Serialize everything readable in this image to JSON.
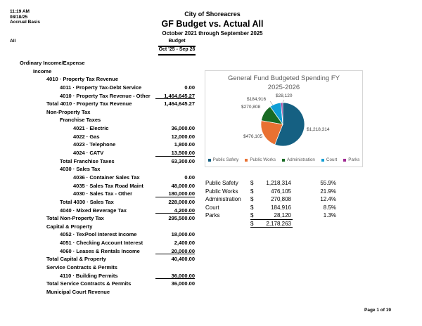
{
  "meta": {
    "time": "11:19 AM",
    "date": "08/18/25",
    "basis": "Accrual Basis",
    "filter": "All"
  },
  "header": {
    "company": "City of Shoreacres",
    "title": "GF Budget vs. Actual All",
    "period": "October 2021 through September 2025"
  },
  "columns": {
    "group": "Budget",
    "period": "Oct '25 - Sep 26"
  },
  "report": {
    "rows": [
      {
        "label": "Ordinary Income/Expense",
        "level": 1,
        "amount": null,
        "underline": false
      },
      {
        "label": "Income",
        "level": 2,
        "amount": null,
        "underline": false
      },
      {
        "label": "4010 · Property Tax Revenue",
        "level": 3,
        "amount": null,
        "underline": false
      },
      {
        "label": "4011 · Property Tax-Debt Service",
        "level": 4,
        "amount": "0.00",
        "underline": false
      },
      {
        "label": "4010 · Property Tax Revenue - Other",
        "level": 4,
        "amount": "1,464,645.27",
        "underline": true
      },
      {
        "label": "Total 4010 · Property Tax Revenue",
        "level": 3,
        "amount": "1,464,645.27",
        "underline": false
      },
      {
        "label": "Non-Property Tax",
        "level": 3,
        "amount": null,
        "underline": false
      },
      {
        "label": "Franchise Taxes",
        "level": 4,
        "amount": null,
        "underline": false
      },
      {
        "label": "4021 · Electric",
        "level": 5,
        "amount": "36,000.00",
        "underline": false
      },
      {
        "label": "4022 · Gas",
        "level": 5,
        "amount": "12,000.00",
        "underline": false
      },
      {
        "label": "4023 · Telephone",
        "level": 5,
        "amount": "1,800.00",
        "underline": false
      },
      {
        "label": "4024 · CATV",
        "level": 5,
        "amount": "13,500.00",
        "underline": true
      },
      {
        "label": "Total Franchise Taxes",
        "level": 4,
        "amount": "63,300.00",
        "underline": false
      },
      {
        "label": "4030 · Sales Tax",
        "level": 4,
        "amount": null,
        "underline": false
      },
      {
        "label": "4036 · Container Sales Tax",
        "level": 5,
        "amount": "0.00",
        "underline": false
      },
      {
        "label": "4035 · Sales Tax Road Maint",
        "level": 5,
        "amount": "48,000.00",
        "underline": false
      },
      {
        "label": "4030 · Sales Tax - Other",
        "level": 5,
        "amount": "180,000.00",
        "underline": true
      },
      {
        "label": "Total 4030 · Sales Tax",
        "level": 4,
        "amount": "228,000.00",
        "underline": false
      },
      {
        "label": "4040 · Mixed Beverage Tax",
        "level": 4,
        "amount": "4,200.00",
        "underline": true
      },
      {
        "label": "Total Non-Property Tax",
        "level": 3,
        "amount": "295,500.00",
        "underline": false
      },
      {
        "label": "Capital & Property",
        "level": 3,
        "amount": null,
        "underline": false
      },
      {
        "label": "4052 · TexPool Interest Income",
        "level": 4,
        "amount": "18,000.00",
        "underline": false
      },
      {
        "label": "4051 · Checking Account Interest",
        "level": 4,
        "amount": "2,400.00",
        "underline": false
      },
      {
        "label": "4060 · Leases & Rentals Income",
        "level": 4,
        "amount": "20,000.00",
        "underline": true
      },
      {
        "label": "Total Capital & Property",
        "level": 3,
        "amount": "40,400.00",
        "underline": false
      },
      {
        "label": "Service Contracts & Permits",
        "level": 3,
        "amount": null,
        "underline": false
      },
      {
        "label": "4110 · Building Permits",
        "level": 4,
        "amount": "36,000.00",
        "underline": true
      },
      {
        "label": "Total Service Contracts & Permits",
        "level": 3,
        "amount": "36,000.00",
        "underline": false
      },
      {
        "label": "Municipal Court Revenue",
        "level": 3,
        "amount": null,
        "underline": false
      }
    ]
  },
  "chart_data": {
    "type": "pie",
    "title": "General Fund Budgeted Spending FY 2025-2026",
    "title_line1": "General Fund Budgeted Spending FY",
    "title_line2": "2025-2026",
    "categories": [
      "Public Safety",
      "Public Works",
      "Administration",
      "Court",
      "Parks"
    ],
    "values": [
      1218314,
      476105,
      270808,
      184916,
      28120
    ],
    "labels": [
      "$1,218,314",
      "$476,105",
      "$270,808",
      "$184,916",
      "$28,120"
    ],
    "percentages": [
      55.9,
      21.9,
      12.4,
      8.5,
      1.3
    ],
    "colors": [
      "#156082",
      "#E97132",
      "#196B24",
      "#0F9ED5",
      "#A02B93"
    ],
    "start_angle_deg": 0,
    "direction": "clockwise",
    "legend_position": "bottom",
    "title_color": "#595959",
    "border_color": "#d6d6d6"
  },
  "summary": {
    "rows": [
      {
        "label": "Public Safety",
        "currency": "$",
        "amount": "1,218,314",
        "pct": "55.9%"
      },
      {
        "label": "Public Works",
        "currency": "$",
        "amount": "476,105",
        "pct": "21.9%"
      },
      {
        "label": "Administration",
        "currency": "$",
        "amount": "270,808",
        "pct": "12.4%"
      },
      {
        "label": "Court",
        "currency": "$",
        "amount": "184,916",
        "pct": "8.5%"
      },
      {
        "label": "Parks",
        "currency": "$",
        "amount": "28,120",
        "pct": "1.3%"
      }
    ],
    "total": {
      "currency": "$",
      "amount": "2,178,263"
    }
  },
  "footer": {
    "page": "Page 1 of 19"
  }
}
